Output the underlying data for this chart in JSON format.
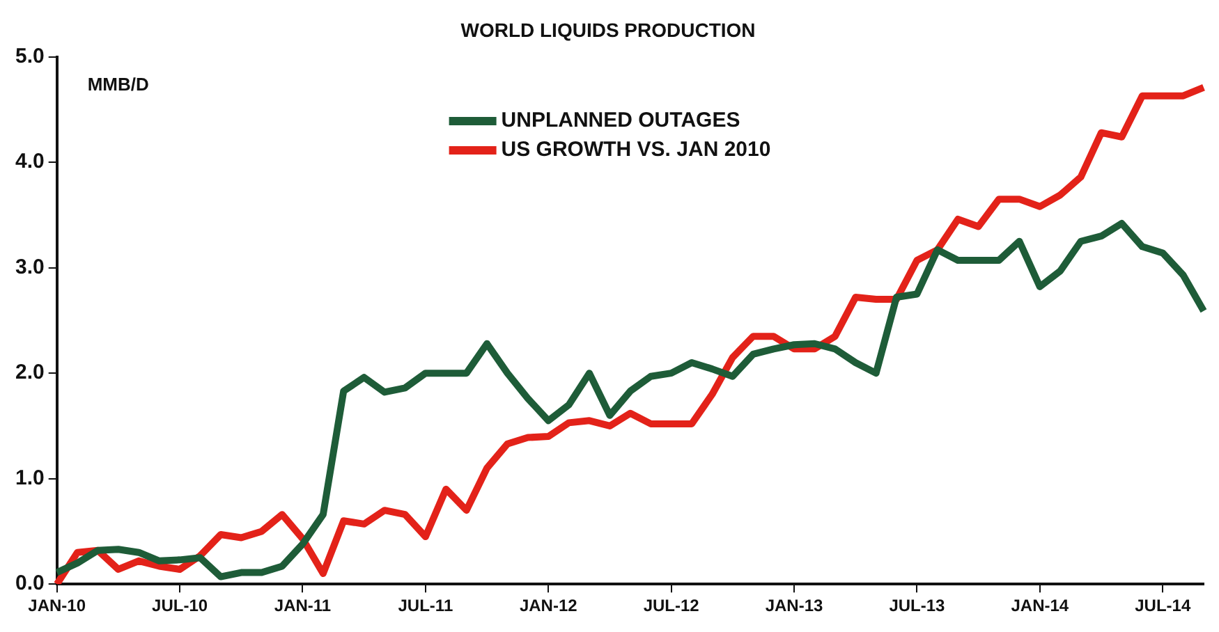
{
  "chart_data": {
    "type": "line",
    "title": "WORLD LIQUIDS PRODUCTION",
    "ylabel": "MMB/D",
    "categories": [
      "JAN-10",
      null,
      null,
      null,
      null,
      null,
      "JUL-10",
      null,
      null,
      null,
      null,
      null,
      "JAN-11",
      null,
      null,
      null,
      null,
      null,
      "JUL-11",
      null,
      null,
      null,
      null,
      null,
      "JAN-12",
      null,
      null,
      null,
      null,
      null,
      "JUL-12",
      null,
      null,
      null,
      null,
      null,
      "JAN-13",
      null,
      null,
      null,
      null,
      null,
      "JUL-13",
      null,
      null,
      null,
      null,
      null,
      "JAN-14",
      null,
      null,
      null,
      null,
      null,
      "JUL-14",
      null,
      null
    ],
    "series": [
      {
        "name": "UNPLANNED OUTAGES",
        "color": "#1e5c38",
        "values": [
          0.11,
          0.2,
          0.32,
          0.33,
          0.3,
          0.22,
          0.23,
          0.25,
          0.07,
          0.11,
          0.11,
          0.17,
          0.38,
          0.66,
          1.83,
          1.96,
          1.82,
          1.86,
          2.0,
          2.0,
          2.0,
          2.28,
          2.0,
          1.76,
          1.55,
          1.7,
          2.0,
          1.6,
          1.83,
          1.97,
          2.0,
          2.1,
          2.04,
          1.97,
          2.18,
          2.23,
          2.27,
          2.28,
          2.23,
          2.1,
          2.0,
          2.72,
          2.75,
          3.17,
          3.07,
          3.07,
          3.07,
          3.25,
          2.82,
          2.97,
          3.25,
          3.3,
          3.42,
          3.2,
          3.14,
          2.93,
          2.59
        ]
      },
      {
        "name": "US GROWTH VS. JAN 2010",
        "color": "#e32219",
        "values": [
          0.0,
          0.3,
          0.32,
          0.14,
          0.22,
          0.17,
          0.14,
          0.27,
          0.47,
          0.44,
          0.5,
          0.66,
          0.43,
          0.1,
          0.6,
          0.57,
          0.7,
          0.66,
          0.45,
          0.9,
          0.7,
          1.1,
          1.33,
          1.39,
          1.4,
          1.53,
          1.55,
          1.5,
          1.62,
          1.52,
          1.52,
          1.52,
          1.8,
          2.15,
          2.35,
          2.35,
          2.23,
          2.23,
          2.35,
          2.72,
          2.7,
          2.7,
          3.07,
          3.17,
          3.46,
          3.39,
          3.65,
          3.65,
          3.58,
          3.69,
          3.86,
          4.28,
          4.24,
          4.63,
          4.63,
          4.63,
          4.71
        ]
      }
    ],
    "ylim": [
      0,
      5
    ],
    "yticks": [
      {
        "value": 0,
        "label": "0.0"
      },
      {
        "value": 1,
        "label": "1.0"
      },
      {
        "value": 2,
        "label": "2.0"
      },
      {
        "value": 3,
        "label": "3.0"
      },
      {
        "value": 4,
        "label": "4.0"
      },
      {
        "value": 5,
        "label": "5.0"
      }
    ],
    "legend": "top",
    "marker": "none",
    "line_style": "solid"
  }
}
